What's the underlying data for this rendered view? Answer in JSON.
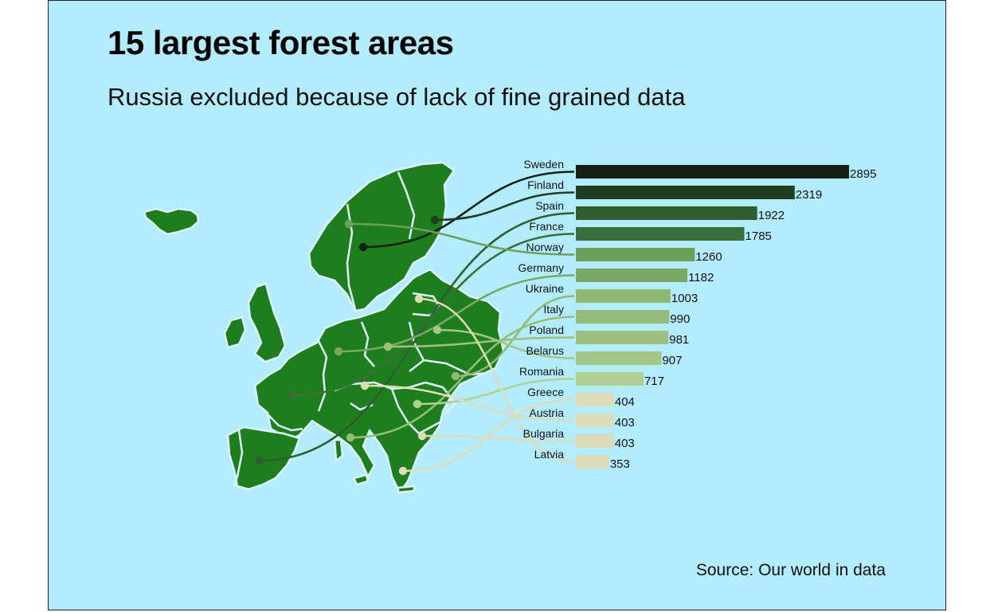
{
  "title": "15 largest forest areas",
  "subtitle": "Russia excluded because of lack of fine grained data",
  "caption": "Source: Our world in data",
  "colors": {
    "background": "#b3ecff",
    "map_fill": "#1e7e1e",
    "map_border": "#ddf4ff"
  },
  "chart_data": {
    "type": "bar",
    "orientation": "horizontal",
    "categories": [
      "Sweden",
      "Finland",
      "Spain",
      "France",
      "Norway",
      "Germany",
      "Ukraine",
      "Italy",
      "Poland",
      "Belarus",
      "Romania",
      "Greece",
      "Austria",
      "Bulgaria",
      "Latvia"
    ],
    "values": [
      2895,
      2319,
      1922,
      1785,
      1260,
      1182,
      1003,
      990,
      981,
      907,
      717,
      404,
      403,
      403,
      353
    ],
    "colors": [
      "#142114",
      "#213d21",
      "#2e5e2e",
      "#3a6e3a",
      "#6aa05a",
      "#77a964",
      "#8fb873",
      "#95bc78",
      "#9cc07e",
      "#a3c585",
      "#b1d093",
      "#dedbb8",
      "#dedbb8",
      "#dedbb8",
      "#dedbb8"
    ],
    "xlabel": "",
    "ylabel": "",
    "grid": false,
    "legend": "none"
  }
}
